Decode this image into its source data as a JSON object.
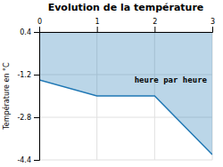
{
  "chart_data": {
    "type": "area",
    "title": "Evolution de la température",
    "y_label": "Température en °C",
    "x": [
      0,
      1,
      2,
      3
    ],
    "values": [
      -1.4,
      -2.0,
      -2.0,
      -4.2
    ],
    "fill_top": 0.4,
    "xlim": [
      0,
      3
    ],
    "ylim": [
      -4.4,
      0.4
    ],
    "xticks": [
      0,
      1,
      2,
      3
    ],
    "yticks": [
      0.4,
      -1.2,
      -2.8,
      -4.4
    ],
    "grid": true,
    "annotations": [
      {
        "text": "heure par heure",
        "x": 1.65,
        "y": -1.5
      }
    ]
  }
}
